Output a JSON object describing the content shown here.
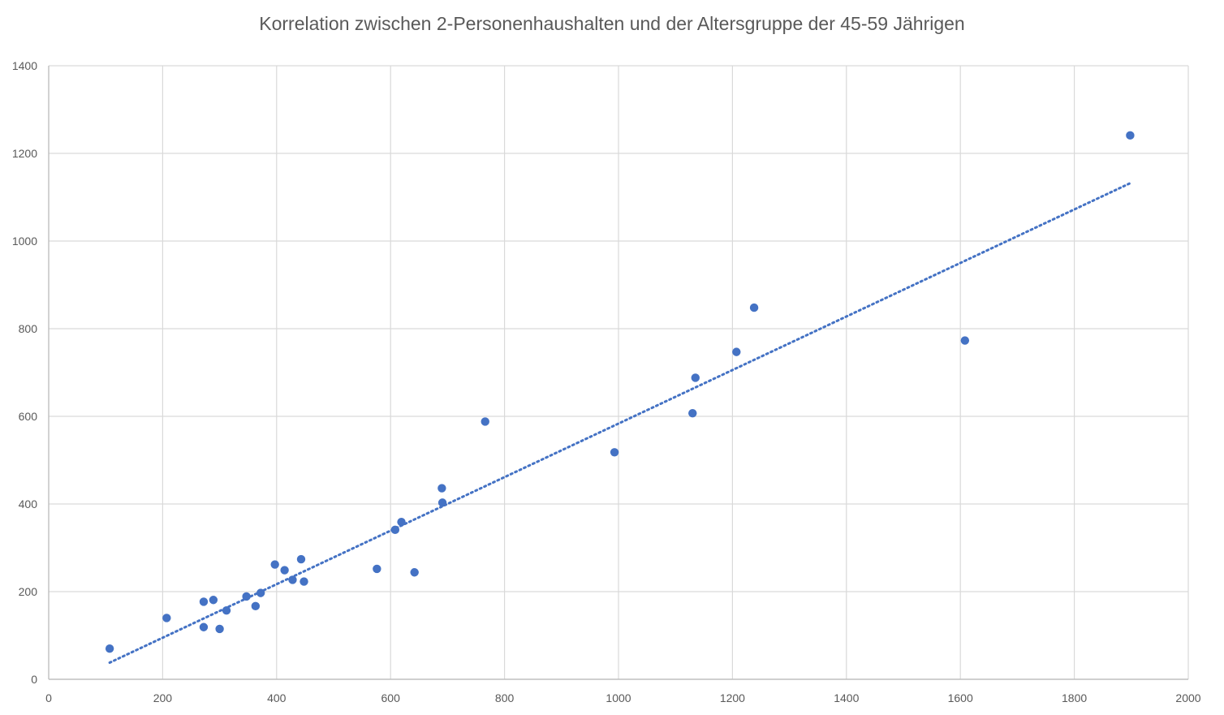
{
  "chart_data": {
    "type": "scatter",
    "title": "Korrelation zwischen 2-Personenhaushalten und der Altersgruppe der 45-59 Jährigen",
    "xlabel": "",
    "ylabel": "",
    "xlim": [
      0,
      2000
    ],
    "ylim": [
      0,
      1400
    ],
    "x_ticks": [
      "0",
      "200",
      "400",
      "600",
      "800",
      "1000",
      "1200",
      "1400",
      "1600",
      "1800",
      "2000"
    ],
    "y_ticks": [
      "0",
      "200",
      "400",
      "600",
      "800",
      "1000",
      "1200",
      "1400"
    ],
    "grid": true,
    "legend": "none",
    "series": [
      {
        "color": "#4472c4",
        "points": [
          {
            "x": 107,
            "y": 70
          },
          {
            "x": 207,
            "y": 140
          },
          {
            "x": 272,
            "y": 177
          },
          {
            "x": 272,
            "y": 119
          },
          {
            "x": 289,
            "y": 181
          },
          {
            "x": 300,
            "y": 115
          },
          {
            "x": 312,
            "y": 157
          },
          {
            "x": 347,
            "y": 189
          },
          {
            "x": 363,
            "y": 167
          },
          {
            "x": 372,
            "y": 197
          },
          {
            "x": 397,
            "y": 262
          },
          {
            "x": 414,
            "y": 249
          },
          {
            "x": 428,
            "y": 227
          },
          {
            "x": 443,
            "y": 274
          },
          {
            "x": 448,
            "y": 223
          },
          {
            "x": 576,
            "y": 252
          },
          {
            "x": 608,
            "y": 341
          },
          {
            "x": 619,
            "y": 359
          },
          {
            "x": 642,
            "y": 244
          },
          {
            "x": 690,
            "y": 436
          },
          {
            "x": 691,
            "y": 403
          },
          {
            "x": 766,
            "y": 588
          },
          {
            "x": 993,
            "y": 518
          },
          {
            "x": 1130,
            "y": 607
          },
          {
            "x": 1135,
            "y": 688
          },
          {
            "x": 1207,
            "y": 747
          },
          {
            "x": 1238,
            "y": 848
          },
          {
            "x": 1608,
            "y": 773
          },
          {
            "x": 1898,
            "y": 1241
          }
        ]
      }
    ],
    "trendline": {
      "type": "linear",
      "style": "dotted",
      "color": "#4472c4",
      "x_start": 107,
      "y_start": 38,
      "x_end": 1898,
      "y_end": 1132
    }
  }
}
